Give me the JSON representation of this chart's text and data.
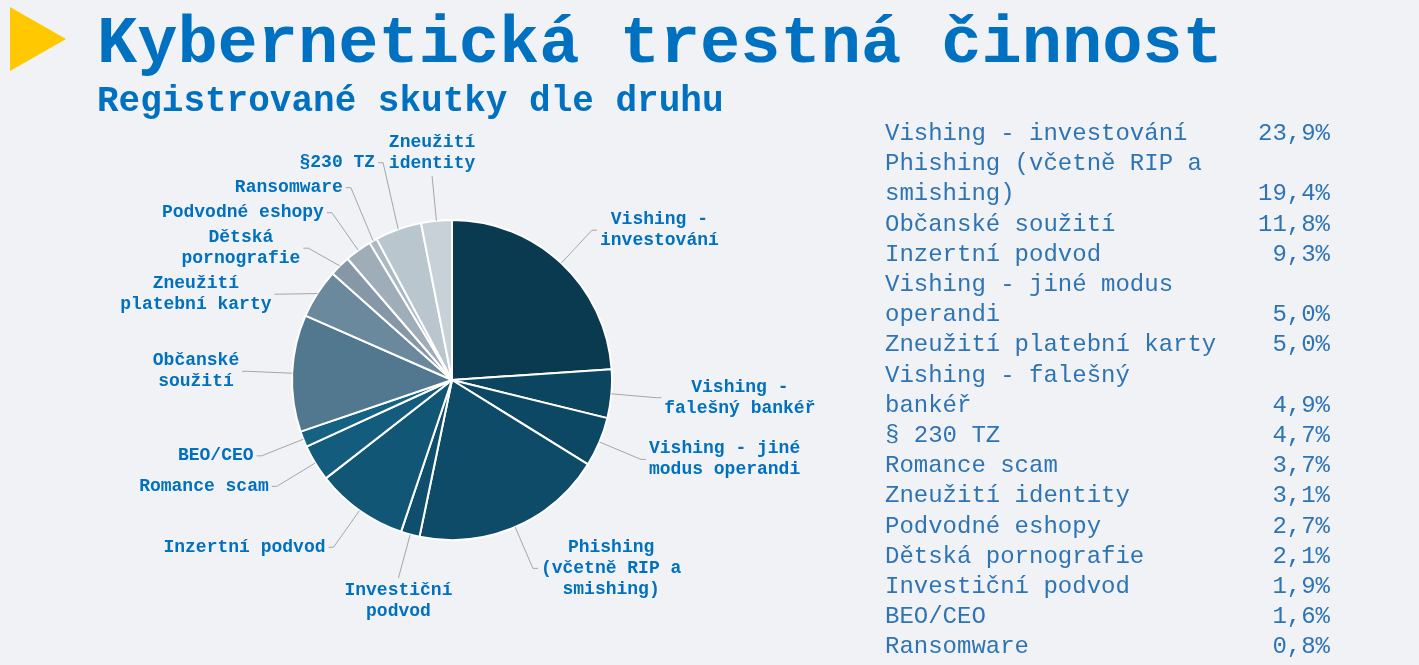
{
  "chart_data": [
    {
      "type": "pie",
      "title": "Kybernetická trestná činnost",
      "subtitle": "Registrované skutky dle druhu",
      "categories": [
        "Vishing - investování",
        "Vishing - falešný bankéř",
        "Vishing - jiné modus operandi",
        "Phishing (včetně RIP a smishing)",
        "Investiční podvod",
        "Inzertní podvod",
        "Romance scam",
        "BEO/CEO",
        "Občanské soužití",
        "Zneužití platební karty",
        "Dětská pornografie",
        "Podvodné eshopy",
        "Ransomware",
        "§230 TZ",
        "Zneužití identity"
      ],
      "values": [
        23.9,
        4.9,
        5.0,
        19.4,
        1.9,
        9.3,
        3.7,
        1.6,
        11.8,
        5.0,
        2.1,
        2.7,
        0.8,
        4.7,
        3.1
      ],
      "colors": [
        "#093a50",
        "#0b4560",
        "#0c4863",
        "#0e4b68",
        "#0f4e6d",
        "#125676",
        "#145c7d",
        "#156283",
        "#52788f",
        "#6b899d",
        "#8698a8",
        "#9eadb8",
        "#abb9c3",
        "#bac6cd",
        "#c8d1d7"
      ]
    },
    {
      "type": "other",
      "annotations": [
        "Vishing - investování",
        "23,9%",
        "Phishing (včetně RIP a smishing)",
        "19,4%",
        "Občanské soužití",
        "11,8%",
        "Inzertní podvod",
        "9,3%",
        "Vishing - jiné modus operandi",
        "5,0%",
        "Zneužití platební karty",
        "5,0%",
        "Vishing - falešný bankéř",
        "4,9%",
        "§ 230 TZ",
        "4,7%",
        "Romance scam",
        "3,7%",
        "Zneužití identity",
        "3,1%",
        "Podvodné eshopy",
        "2,7%",
        "Dětská pornografie",
        "2,1%",
        "Investiční podvod",
        "1,9%",
        "BEO/CEO",
        "1,6%",
        "Ransomware",
        "0,8%"
      ]
    }
  ]
}
